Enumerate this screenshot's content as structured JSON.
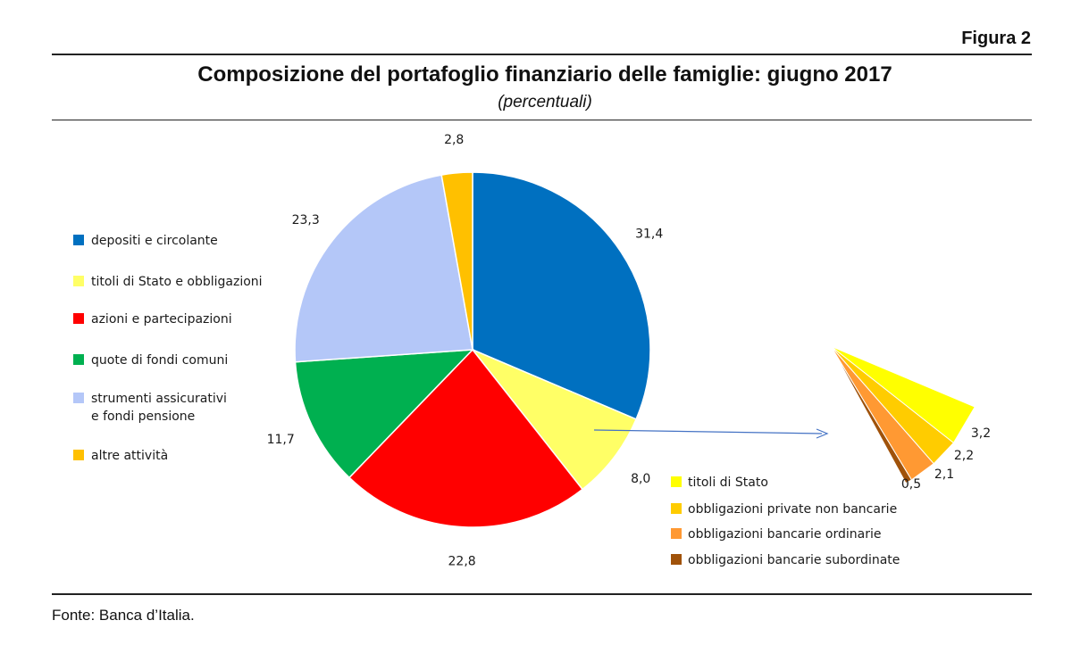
{
  "figure_label": "Figura 2",
  "title": "Composizione del portafoglio finanziario delle famiglie: giugno 2017",
  "subtitle": "(percentuali)",
  "source": "Fonte: Banca d’Italia.",
  "chart_data": [
    {
      "type": "pie",
      "slices": [
        {
          "label": "depositi e circolante",
          "value": 31.4,
          "value_label": "31,4",
          "color": "#0070C0"
        },
        {
          "label": "titoli di Stato e obbligazioni",
          "value": 8.0,
          "value_label": "8,0",
          "color": "#FFFF66"
        },
        {
          "label": "azioni e partecipazioni",
          "value": 22.8,
          "value_label": "22,8",
          "color": "#FF0000"
        },
        {
          "label": "quote di fondi comuni",
          "value": 11.7,
          "value_label": "11,7",
          "color": "#00B050"
        },
        {
          "label": "strumenti assicurativi e fondi pensione",
          "value": 23.3,
          "value_label": "23,3",
          "color": "#B4C7F8"
        },
        {
          "label": "altre attività",
          "value": 2.8,
          "value_label": "2,8",
          "color": "#FFC000"
        }
      ],
      "legend": {
        "placement": "left",
        "items": [
          {
            "text": [
              "depositi e circolante"
            ],
            "color": "#0070C0"
          },
          {
            "text": [
              "titoli di Stato e obbligazioni"
            ],
            "color": "#FFFF66"
          },
          {
            "text": [
              "azioni e partecipazioni"
            ],
            "color": "#FF0000"
          },
          {
            "text": [
              "quote di fondi comuni"
            ],
            "color": "#00B050"
          },
          {
            "text": [
              "strumenti assicurativi",
              "e fondi pensione"
            ],
            "color": "#B4C7F8"
          },
          {
            "text": [
              "altre attività"
            ],
            "color": "#FFC000"
          }
        ]
      }
    },
    {
      "type": "pie",
      "note": "breakdown of slice 'titoli di Stato e obbligazioni' (8,0)",
      "slices": [
        {
          "label": "titoli di Stato",
          "value": 3.2,
          "value_label": "3,2",
          "color": "#FFFF00"
        },
        {
          "label": "obbligazioni private non bancarie",
          "value": 2.2,
          "value_label": "2,2",
          "color": "#FFCC00"
        },
        {
          "label": "obbligazioni bancarie ordinarie",
          "value": 2.1,
          "value_label": "2,1",
          "color": "#FF9933"
        },
        {
          "label": "obbligazioni bancarie subordinate",
          "value": 0.5,
          "value_label": "0,5",
          "color": "#A0520A"
        }
      ],
      "legend": {
        "placement": "bottom-right",
        "items": [
          {
            "text": [
              "titoli di Stato"
            ],
            "color": "#FFFF00"
          },
          {
            "text": [
              "obbligazioni private non bancarie"
            ],
            "color": "#FFCC00"
          },
          {
            "text": [
              "obbligazioni bancarie ordinarie"
            ],
            "color": "#FF9933"
          },
          {
            "text": [
              "obbligazioni bancarie subordinate"
            ],
            "color": "#A0520A"
          }
        ]
      }
    }
  ]
}
